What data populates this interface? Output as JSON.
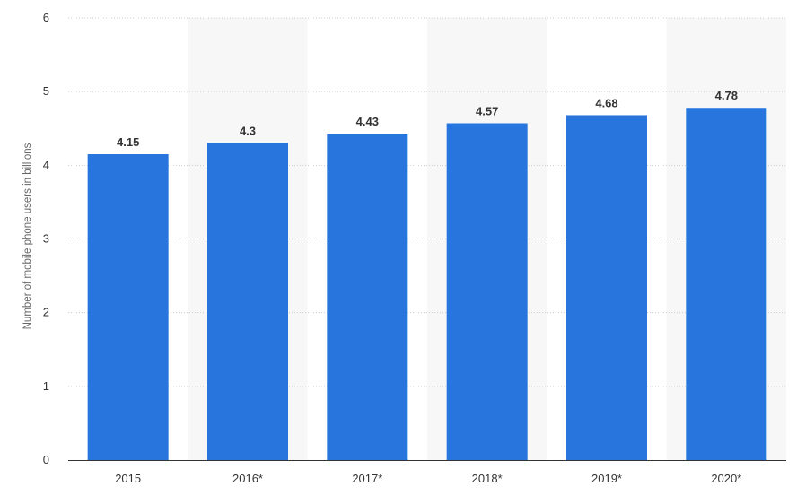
{
  "chart_data": {
    "type": "bar",
    "title": "",
    "xlabel": "",
    "ylabel": "Number of mobile phone users in billions",
    "categories": [
      "2015",
      "2016*",
      "2017*",
      "2018*",
      "2019*",
      "2020*"
    ],
    "values": [
      4.15,
      4.3,
      4.43,
      4.57,
      4.68,
      4.78
    ],
    "value_labels": [
      "4.15",
      "4.3",
      "4.43",
      "4.57",
      "4.68",
      "4.78"
    ],
    "ylim": [
      0,
      6
    ],
    "yticks": [
      0,
      1,
      2,
      3,
      4,
      5,
      6
    ],
    "grid": true,
    "grid_style": "dotted horizontal",
    "alternating_band_color": "#f7f7f7",
    "bar_color": "#2876dd",
    "legend": "none"
  }
}
